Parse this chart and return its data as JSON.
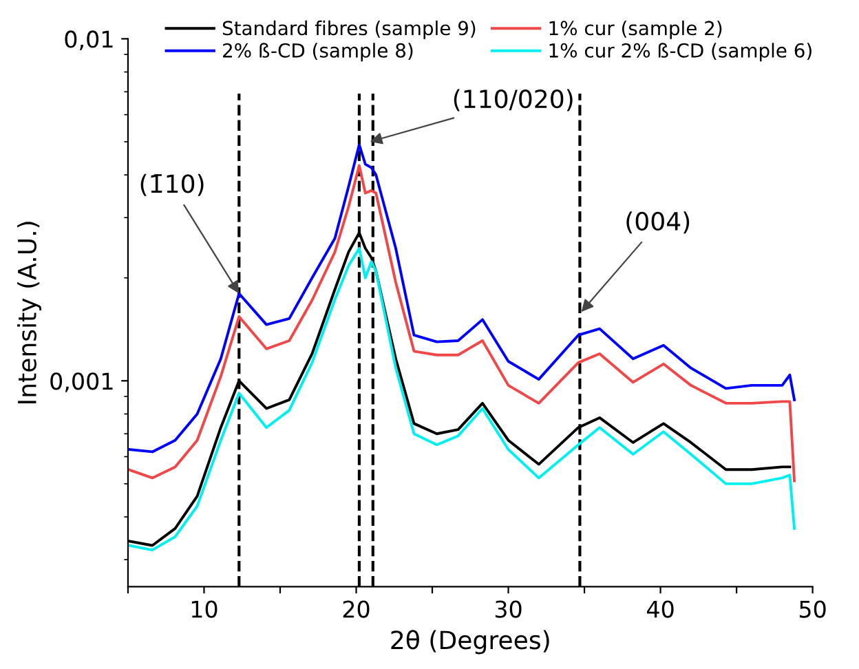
{
  "chart_data": {
    "type": "line",
    "xlabel": "2θ (Degrees)",
    "ylabel": "Intensity (A.U.)",
    "log": "y",
    "grid": false,
    "legend": "top",
    "line_style": "solid",
    "marker": "none",
    "x": [
      5.05,
      6.6,
      8.1,
      9.55,
      11.1,
      12.3,
      14.1,
      15.6,
      17.1,
      18.6,
      19.5,
      20.2,
      20.6,
      21.0,
      21.3,
      22.6,
      23.8,
      25.3,
      26.7,
      28.3,
      30,
      32,
      34.6,
      36,
      38.2,
      40.2,
      42,
      44.3,
      46,
      48,
      48.5,
      48.8
    ],
    "xlim": [
      5,
      50
    ],
    "xticks": [
      {
        "value": 5,
        "label": null
      },
      10,
      {
        "value": 15,
        "label": null
      },
      20,
      {
        "value": 25,
        "label": null
      },
      30,
      {
        "value": 35,
        "label": null
      },
      40,
      {
        "value": 45,
        "label": null
      },
      50
    ],
    "ylim": [
      0.00025,
      0.01
    ],
    "yticks": [
      {
        "value": 0.001,
        "label": "0,001"
      },
      {
        "value": 0.01,
        "label": "0,01"
      }
    ],
    "series": [
      {
        "name": "Standard fibres (sample 9)",
        "color": "#000000",
        "values": [
          0.00034,
          0.00033,
          0.00037,
          0.00046,
          0.00073,
          0.001,
          0.00083,
          0.00088,
          0.0012,
          0.00185,
          0.00238,
          0.00271,
          0.00244,
          0.00229,
          0.00209,
          0.00116,
          0.00075,
          0.0007,
          0.00072,
          0.00086,
          0.00067,
          0.00057,
          0.00073,
          0.00078,
          0.00066,
          0.00075,
          0.00066,
          0.00055,
          0.00055,
          0.00056,
          0.00056,
          null
        ]
      },
      {
        "name": "2% ß-CD (sample 8)",
        "color": "#0000ff",
        "values": [
          0.00063,
          0.00062,
          0.00067,
          0.0008,
          0.00116,
          0.0018,
          0.00146,
          0.00152,
          0.002,
          0.00261,
          0.0037,
          0.0049,
          0.0043,
          0.0042,
          0.004,
          0.00244,
          0.00136,
          0.0013,
          0.00131,
          0.00151,
          0.00114,
          0.00101,
          0.00136,
          0.00142,
          0.00116,
          0.00127,
          0.00109,
          0.00095,
          0.00097,
          0.00097,
          0.00104,
          0.00088
        ]
      },
      {
        "name": "1% cur (sample 2)",
        "color": "#f04848",
        "values": [
          0.00055,
          0.00052,
          0.00056,
          0.00067,
          0.00103,
          0.00154,
          0.00124,
          0.00131,
          0.00172,
          0.00238,
          0.00323,
          0.00426,
          0.00354,
          0.0036,
          0.00354,
          0.00194,
          0.00122,
          0.00119,
          0.00119,
          0.00131,
          0.00097,
          0.00086,
          0.00113,
          0.0012,
          0.00099,
          0.00112,
          0.00097,
          0.00086,
          0.00086,
          0.00087,
          0.00087,
          0.00051
        ]
      },
      {
        "name": "1% cur 2% ß-CD (sample 6)",
        "color": "#00f0f0",
        "values": [
          0.00033,
          0.00032,
          0.00035,
          0.00043,
          0.00067,
          0.00092,
          0.00073,
          0.00082,
          0.00113,
          0.00173,
          0.00217,
          0.00244,
          0.002,
          0.00223,
          0.00209,
          0.00109,
          0.0007,
          0.00065,
          0.00069,
          0.00083,
          0.00063,
          0.00052,
          0.00065,
          0.00073,
          0.00061,
          0.00071,
          0.00061,
          0.0005,
          0.0005,
          0.00052,
          0.00053,
          0.00037
        ]
      }
    ],
    "ref_lines": [
      {
        "axis": "x",
        "value": 12.3,
        "color": "#000000",
        "line_style": "dashed"
      },
      {
        "axis": "x",
        "value": 20.2,
        "color": "#000000",
        "line_style": "dashed"
      },
      {
        "axis": "x",
        "value": 21.1,
        "color": "#000000",
        "line_style": "dashed"
      },
      {
        "axis": "x",
        "value": 34.7,
        "color": "#000000",
        "line_style": "dashed"
      }
    ],
    "annotations": [
      {
        "text": "(1̄10)",
        "x": 12.3,
        "y": 0.0018
      },
      {
        "text": "(110/020)",
        "x": 20.9,
        "y": 0.005
      },
      {
        "text": "(004)",
        "x": 34.8,
        "y": 0.00159
      }
    ]
  }
}
